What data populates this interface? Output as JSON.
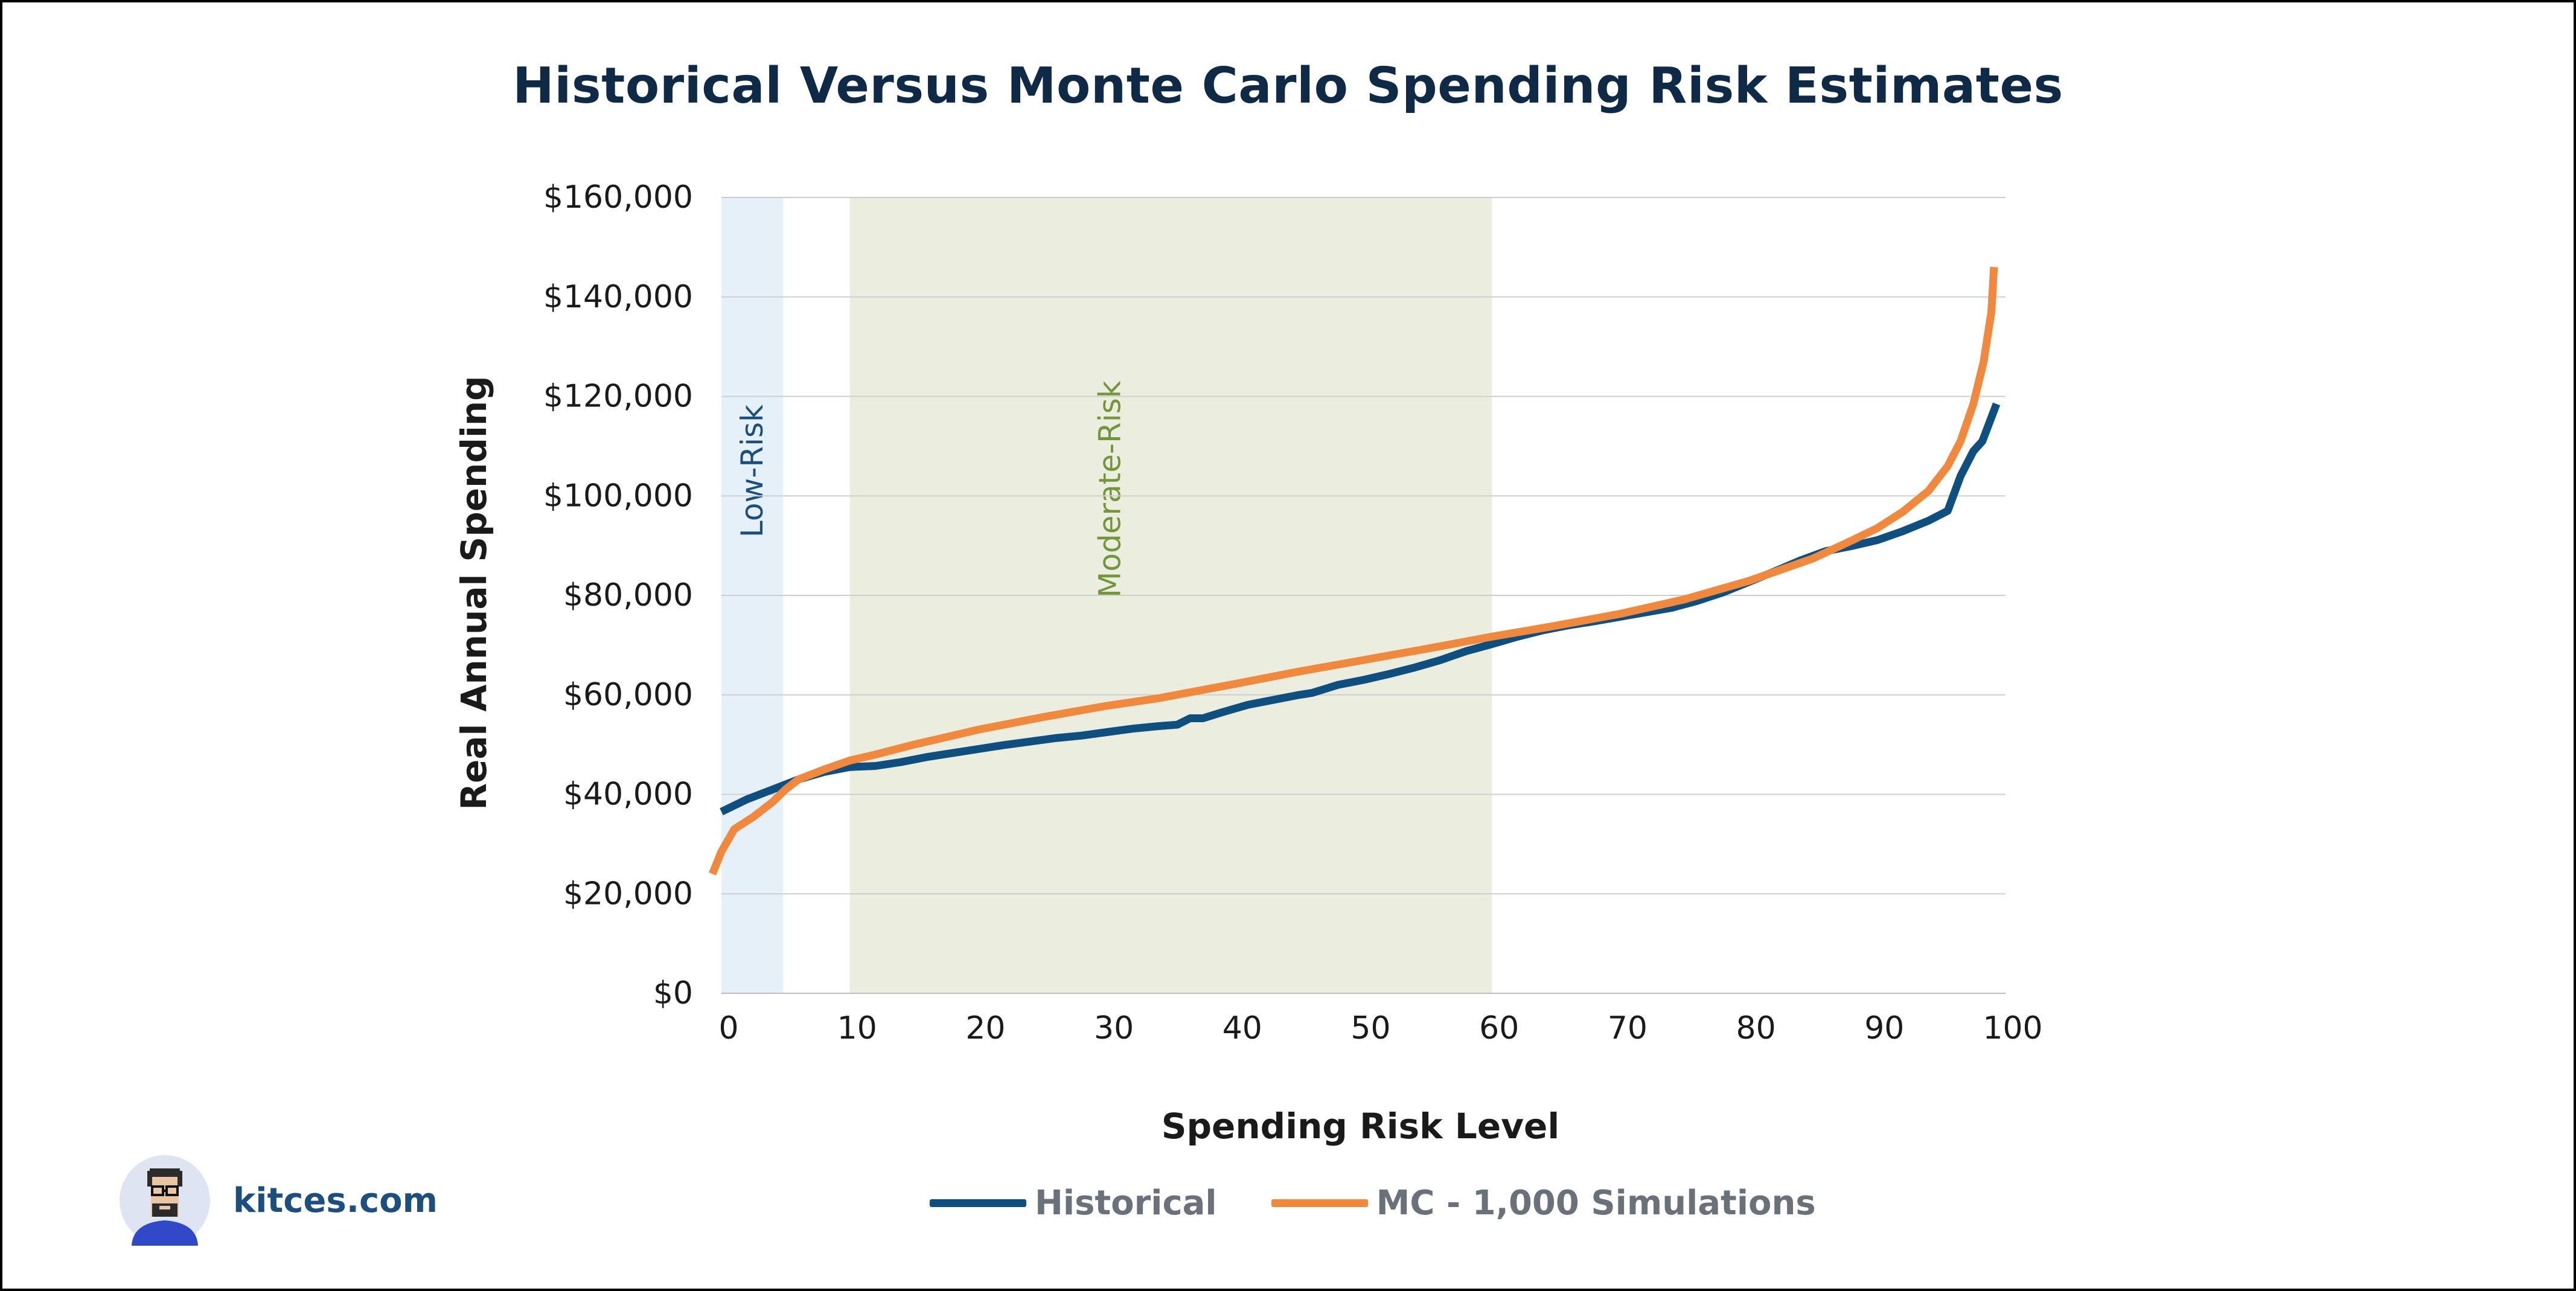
{
  "chart_data": {
    "type": "line",
    "title": "Historical Versus Monte Carlo Spending Risk Estimates",
    "xlabel": "Spending Risk Level",
    "ylabel": "Real Annual Spending",
    "xlim": [
      0,
      100
    ],
    "ylim": [
      0,
      160000
    ],
    "x_ticks": [
      0,
      10,
      20,
      30,
      40,
      50,
      60,
      70,
      80,
      90,
      100
    ],
    "x_tick_labels": [
      "0",
      "10",
      "20",
      "30",
      "40",
      "50",
      "60",
      "70",
      "80",
      "90",
      "100"
    ],
    "y_ticks": [
      0,
      20000,
      40000,
      60000,
      80000,
      100000,
      120000,
      140000,
      160000
    ],
    "y_tick_labels": [
      "$0",
      "$20,000",
      "$40,000",
      "$60,000",
      "$80,000",
      "$100,000",
      "$120,000",
      "$140,000",
      "$160,000"
    ],
    "grid": "horizontal",
    "legend_position": "bottom",
    "bands": [
      {
        "label": "Low-Risk",
        "x_start": 0,
        "x_end": 4.8,
        "color": "#e6f0f8",
        "label_color": "#1d4f7e"
      },
      {
        "label": "Moderate-Risk",
        "x_start": 10,
        "x_end": 60,
        "color": "#ebeedf",
        "label_color": "#73963d"
      }
    ],
    "series": [
      {
        "name": "Historical",
        "color": "#0f4f80",
        "points": [
          [
            0,
            36500
          ],
          [
            2,
            39000
          ],
          [
            4,
            41000
          ],
          [
            6,
            43000
          ],
          [
            8,
            44500
          ],
          [
            10,
            45500
          ],
          [
            12,
            45700
          ],
          [
            14,
            46500
          ],
          [
            16,
            47500
          ],
          [
            18,
            48300
          ],
          [
            20,
            49100
          ],
          [
            22,
            49900
          ],
          [
            24,
            50600
          ],
          [
            26,
            51300
          ],
          [
            28,
            51800
          ],
          [
            30,
            52500
          ],
          [
            32,
            53200
          ],
          [
            34,
            53700
          ],
          [
            35.5,
            54000
          ],
          [
            36.5,
            55300
          ],
          [
            37.5,
            55300
          ],
          [
            39,
            56500
          ],
          [
            41,
            58000
          ],
          [
            43,
            59000
          ],
          [
            45,
            60000
          ],
          [
            46,
            60400
          ],
          [
            47,
            61200
          ],
          [
            48,
            62000
          ],
          [
            50,
            63000
          ],
          [
            52,
            64200
          ],
          [
            54,
            65500
          ],
          [
            56,
            67000
          ],
          [
            58,
            68800
          ],
          [
            60,
            70200
          ],
          [
            62,
            71700
          ],
          [
            64,
            73000
          ],
          [
            66,
            74000
          ],
          [
            68,
            74800
          ],
          [
            70,
            75700
          ],
          [
            72,
            76600
          ],
          [
            74,
            77500
          ],
          [
            76,
            78900
          ],
          [
            78,
            80600
          ],
          [
            80,
            82700
          ],
          [
            82,
            84800
          ],
          [
            84,
            87000
          ],
          [
            86,
            88900
          ],
          [
            88,
            89900
          ],
          [
            90,
            91100
          ],
          [
            92,
            92900
          ],
          [
            94,
            95000
          ],
          [
            95.5,
            97000
          ],
          [
            96.5,
            104000
          ],
          [
            97.5,
            109000
          ],
          [
            98.2,
            111000
          ],
          [
            99.3,
            118500
          ]
        ]
      },
      {
        "name": "MC - 1,000 Simulations",
        "color": "#f0893e",
        "points": [
          [
            -0.7,
            24000
          ],
          [
            0,
            28500
          ],
          [
            1,
            33000
          ],
          [
            2.5,
            35500
          ],
          [
            4,
            38500
          ],
          [
            5,
            41000
          ],
          [
            6,
            43000
          ],
          [
            8,
            45000
          ],
          [
            10,
            46800
          ],
          [
            12,
            48000
          ],
          [
            15,
            50000
          ],
          [
            20,
            53000
          ],
          [
            25,
            55500
          ],
          [
            30,
            57800
          ],
          [
            34,
            59300
          ],
          [
            40,
            62200
          ],
          [
            45,
            64700
          ],
          [
            50,
            67000
          ],
          [
            55,
            69300
          ],
          [
            60,
            71700
          ],
          [
            65,
            73900
          ],
          [
            70,
            76300
          ],
          [
            75,
            79200
          ],
          [
            80,
            82900
          ],
          [
            85,
            87400
          ],
          [
            88,
            91000
          ],
          [
            90,
            93500
          ],
          [
            92,
            96800
          ],
          [
            94,
            101000
          ],
          [
            95.5,
            106000
          ],
          [
            96.5,
            111000
          ],
          [
            97.5,
            118500
          ],
          [
            98.3,
            127000
          ],
          [
            98.9,
            137000
          ],
          [
            99.1,
            146000
          ]
        ]
      }
    ]
  },
  "branding": {
    "site": "kitces.com"
  }
}
